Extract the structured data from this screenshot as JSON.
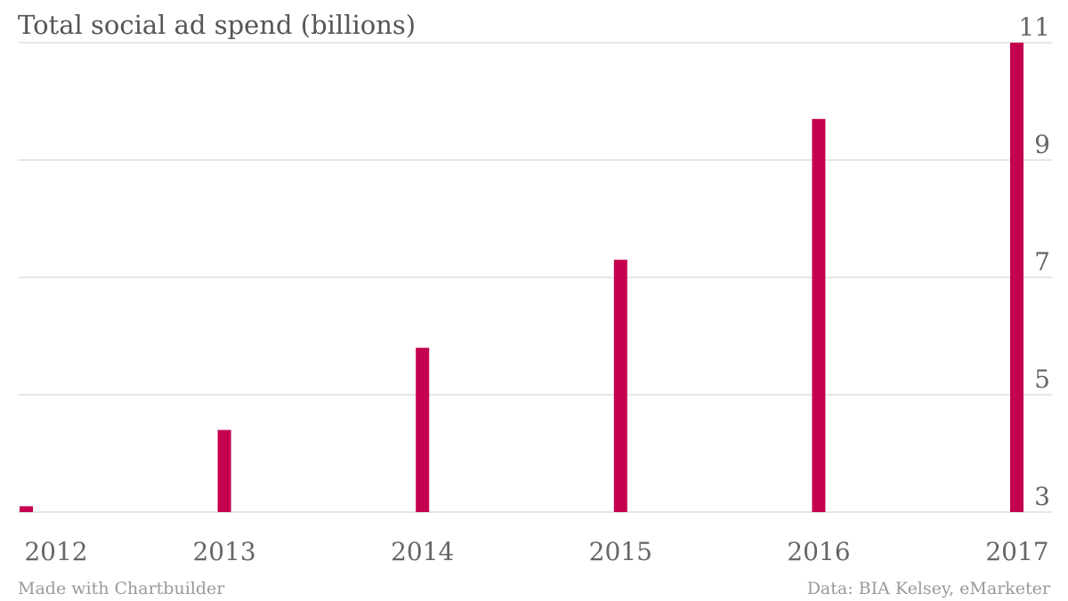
{
  "chart_data": {
    "type": "bar",
    "title": "Total social ad spend (billions)",
    "categories": [
      "2012",
      "2013",
      "2014",
      "2015",
      "2016",
      "2017"
    ],
    "values": [
      3.1,
      4.4,
      5.8,
      7.3,
      9.7,
      11.0
    ],
    "xlabel": "",
    "ylabel": "",
    "ylim": [
      3,
      11
    ],
    "yticks": [
      "3",
      "5",
      "7",
      "9",
      "11"
    ],
    "grid": true,
    "bar_color": "#c4004f",
    "credit": "Made with Chartbuilder",
    "source": "Data: BIA Kelsey, eMarketer"
  }
}
